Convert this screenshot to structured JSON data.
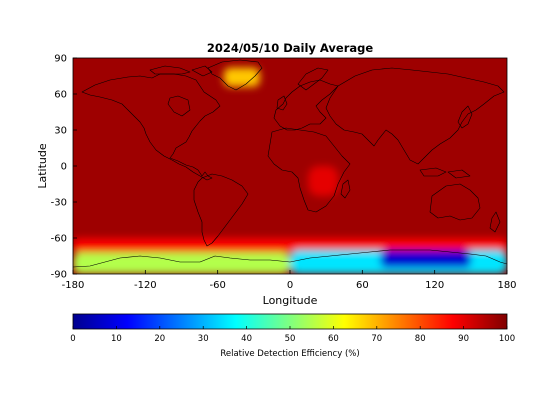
{
  "chart_data": {
    "type": "heatmap",
    "title": "2024/05/10 Daily Average",
    "xlabel": "Longitude",
    "ylabel": "Latitude",
    "xlim": [
      -180,
      180
    ],
    "ylim": [
      -90,
      90
    ],
    "xticks": [
      "-180",
      "-120",
      "-60",
      "0",
      "60",
      "120",
      "180"
    ],
    "yticks": [
      "90",
      "60",
      "30",
      "0",
      "-30",
      "-60",
      "-90"
    ],
    "colorbar": {
      "label": "Relative Detection Efficiency (%)",
      "range": [
        0,
        100
      ],
      "ticks": [
        "0",
        "10",
        "20",
        "30",
        "40",
        "50",
        "60",
        "70",
        "80",
        "90",
        "100"
      ],
      "colormap": "jet"
    },
    "background_value": 97,
    "regions": [
      {
        "name": "Greenland",
        "lon_min": -55,
        "lon_max": -25,
        "lat_min": 66,
        "lat_max": 82,
        "value": 68
      },
      {
        "name": "Central Africa",
        "lon_min": 15,
        "lon_max": 40,
        "lat_min": -25,
        "lat_max": 0,
        "value": 90
      },
      {
        "name": "Southern Ocean",
        "lon_min": -180,
        "lon_max": 180,
        "lat_min": -72,
        "lat_max": -60,
        "value": 88
      },
      {
        "name": "West Antarctica",
        "lon_min": -180,
        "lon_max": 0,
        "lat_min": -90,
        "lat_max": -72,
        "value": 55
      },
      {
        "name": "East Antarctica",
        "lon_min": 0,
        "lon_max": 180,
        "lat_min": -90,
        "lat_max": -70,
        "value": 35
      },
      {
        "name": "East Antarctic Plateau",
        "lon_min": 75,
        "lon_max": 150,
        "lat_min": -85,
        "lat_max": -70,
        "value": 8
      }
    ]
  }
}
